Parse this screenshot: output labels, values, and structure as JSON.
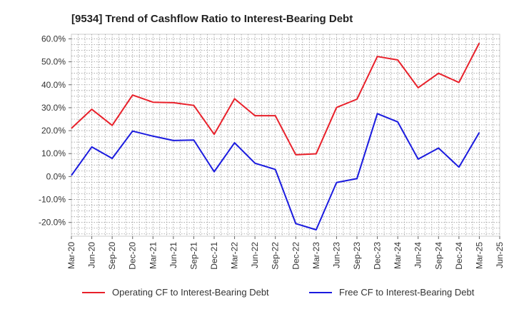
{
  "chart_data": {
    "type": "line",
    "title": "[9534]  Trend of Cashflow Ratio to Interest-Bearing Debt",
    "xlabel": "",
    "ylabel": "",
    "x_tick_labels": [
      "Mar-20",
      "Jun-20",
      "Sep-20",
      "Dec-20",
      "Mar-21",
      "Jun-21",
      "Sep-21",
      "Dec-21",
      "Mar-22",
      "Jun-22",
      "Sep-22",
      "Dec-22",
      "Mar-23",
      "Jun-23",
      "Sep-23",
      "Dec-23",
      "Mar-24",
      "Jun-24",
      "Sep-24",
      "Dec-24",
      "Mar-25",
      "Jun-25"
    ],
    "categories": [
      "Mar-20",
      "Jun-20",
      "Sep-20",
      "Dec-20",
      "Mar-21",
      "Jun-21",
      "Sep-21",
      "Dec-21",
      "Mar-22",
      "Jun-22",
      "Sep-22",
      "Dec-22",
      "Mar-23",
      "Jun-23",
      "Sep-23",
      "Dec-23",
      "Mar-24",
      "Jun-24",
      "Sep-24",
      "Dec-24",
      "Mar-25"
    ],
    "y_ticks": [
      -20,
      -10,
      0,
      10,
      20,
      30,
      40,
      50,
      60
    ],
    "y_tick_labels": [
      "-20.0%",
      "-10.0%",
      "0.0%",
      "10.0%",
      "20.0%",
      "30.0%",
      "40.0%",
      "50.0%",
      "60.0%"
    ],
    "ylim": [
      -26,
      62
    ],
    "grid": true,
    "legend_position": "bottom",
    "series": [
      {
        "name": "Operating CF to Interest-Bearing Debt",
        "color": "#e8202a",
        "values": [
          21.0,
          29.3,
          22.3,
          35.5,
          32.4,
          32.2,
          31.0,
          18.4,
          33.9,
          26.5,
          26.5,
          9.5,
          9.9,
          30.1,
          33.7,
          52.3,
          50.8,
          38.7,
          45.0,
          41.0,
          58.2
        ]
      },
      {
        "name": "Free CF to Interest-Bearing Debt",
        "color": "#1a1adf",
        "values": [
          0.5,
          12.9,
          7.9,
          19.8,
          17.6,
          15.7,
          15.9,
          2.1,
          14.7,
          5.8,
          3.1,
          -20.5,
          -23.2,
          -2.6,
          -0.9,
          27.4,
          23.8,
          7.6,
          12.4,
          4.1,
          19.2
        ]
      }
    ]
  }
}
